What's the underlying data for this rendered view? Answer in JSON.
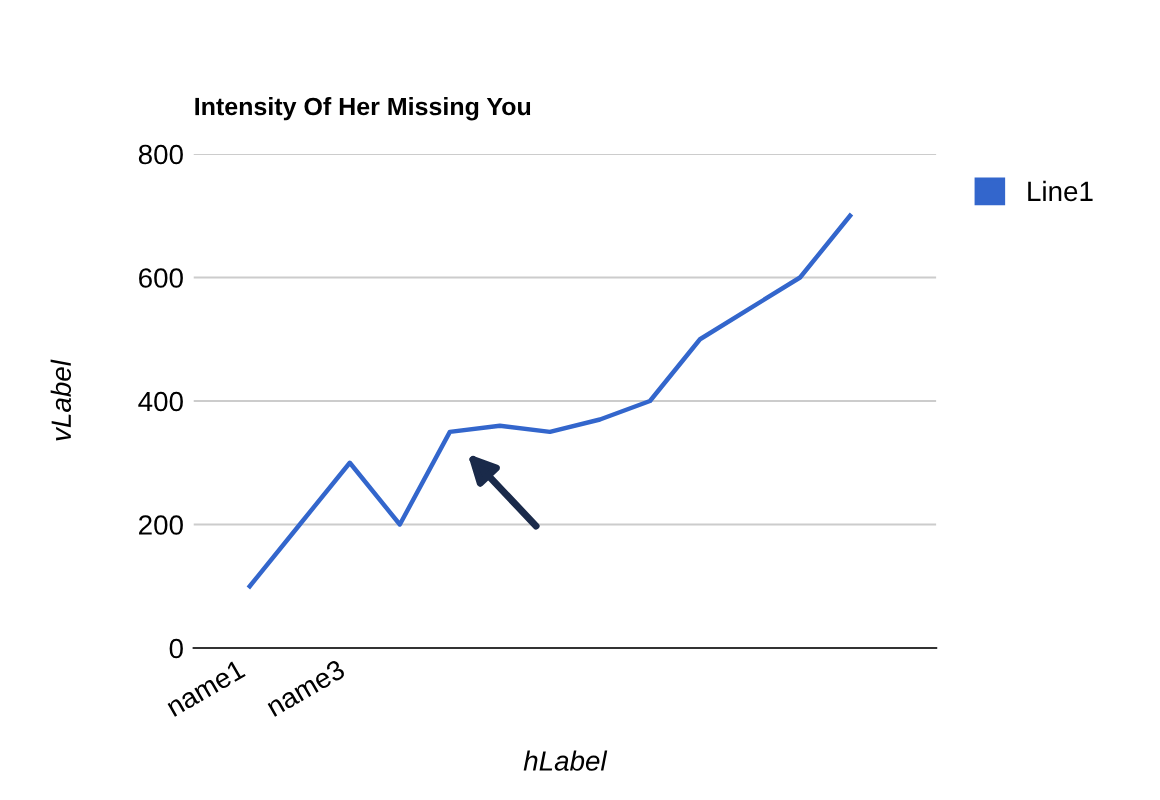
{
  "chart_data": {
    "type": "line",
    "title": "Intensity Of Her Missing You",
    "xlabel": "hLabel",
    "ylabel": "vLabel",
    "categories": [
      "name1",
      null,
      "name3",
      null,
      null,
      null,
      null,
      null,
      null,
      null,
      null,
      null,
      null
    ],
    "series": [
      {
        "name": "Line1",
        "color": "#3366cc",
        "values": [
          100,
          200,
          300,
          200,
          350,
          360,
          350,
          370,
          400,
          500,
          550,
          600,
          700
        ]
      }
    ],
    "ylim": [
      0,
      800
    ],
    "yticks": [
      0,
      200,
      400,
      600,
      800
    ],
    "grid": "y",
    "legend": "top right",
    "marker": "none"
  }
}
